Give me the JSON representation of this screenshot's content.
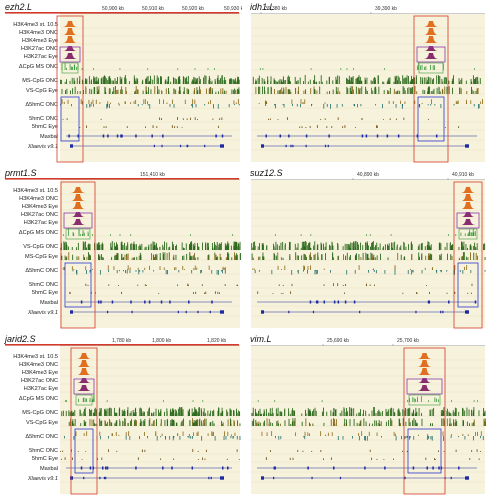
{
  "panels": [
    {
      "gene": "ezh2.L",
      "coords": [
        "50,900 kb",
        "50,910 kb",
        "50,920 kb",
        "50,930 kb"
      ],
      "tracks": [
        "H3K4me3 st. 10.5",
        "H3K4me3 ONC",
        "H3K4me3 Eye",
        "H3K27ac ONC",
        "H3K27ac Eye",
        "ΔCpG MS ONC",
        "MS-CpG ONC",
        "VS-CpG Eye",
        "Δ5hmC ONC",
        "5hmC ONC",
        "5hmC Eye",
        "Maxbal",
        "Xlaevis v9.1"
      ]
    },
    {
      "gene": "idh1.L",
      "coords": [
        "39,380 kb",
        "39,390 kb"
      ],
      "tracks": []
    },
    {
      "gene": "prmt1.S",
      "coords": [
        "151,410 kb"
      ],
      "tracks": [
        "H3K4me3 st. 10.5",
        "H3K4me3 ONC",
        "H3K4me3 Eye",
        "H3K27ac ONC",
        "H3K27ac Eye",
        "ΔCpG MS ONC",
        "VS-CpG ONC",
        "MS-CpG Eye",
        "Δ5hmC ONC",
        "5hmC ONC",
        "5hmC Eye",
        "Maxbal",
        "Xlaevis v9.1"
      ]
    },
    {
      "gene": "suz12.S",
      "coords": [
        "40,890 kb",
        "40,910 kb"
      ],
      "tracks": []
    },
    {
      "gene": "jarid2.S",
      "coords": [
        "1,780 kb",
        "1,800 kb",
        "1,820 kb"
      ],
      "tracks": [
        "H3K4me3 st. 10.5",
        "H3K4me3 ONC",
        "H3K4me3 Eye",
        "H3K27ac ONC",
        "H3K27ac Eye",
        "ΔCpG MS ONC",
        "MS-CpG ONC",
        "VS-CpG Eye",
        "Δ5hmC ONC",
        "5hmC ONC",
        "5hmC Eye",
        "Maxbal",
        "Xlaevis v9.1"
      ]
    },
    {
      "gene": "vim.L",
      "coords": [
        "25,690 kb",
        "25,700 kb"
      ],
      "tracks": []
    }
  ],
  "colors": {
    "background": "#f7f2dc",
    "h3k4me3": "#e0701f",
    "h3k27ac": "#8a2d6e",
    "cpg_delta": "#3a9a3a",
    "cpg_dense": "#2e6b1f",
    "cpg_brown": "#8a6a1a",
    "hmc_delta": "#1f6e6e",
    "hmc_peaks": "#6b4a10",
    "gene_model": "#1e2aa0",
    "highlight_red": "#d23a2a",
    "highlight_blue": "#2a3ad0",
    "highlight_purple": "#8a3aa8"
  }
}
